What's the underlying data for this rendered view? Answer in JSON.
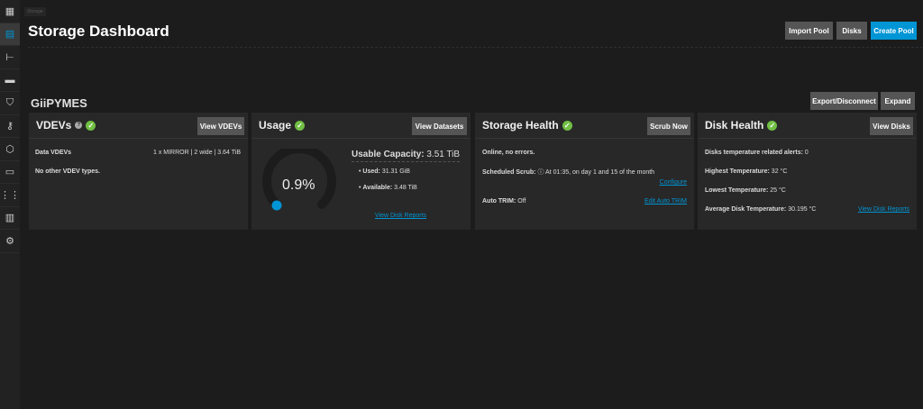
{
  "sidebar": {
    "items": [
      {
        "icon": "dashboard-icon"
      },
      {
        "icon": "storage-icon",
        "active": true
      },
      {
        "icon": "datasets-icon"
      },
      {
        "icon": "shares-icon"
      },
      {
        "icon": "shield-icon"
      },
      {
        "icon": "key-icon"
      },
      {
        "icon": "apps-cube-icon"
      },
      {
        "icon": "laptop-icon"
      },
      {
        "icon": "grid-icon"
      },
      {
        "icon": "reports-icon"
      },
      {
        "icon": "gear-icon"
      }
    ]
  },
  "breadcrumb": "Storage",
  "header": {
    "title": "Storage Dashboard",
    "import_pool": "Import Pool",
    "disks": "Disks",
    "create_pool": "Create Pool"
  },
  "pool": {
    "name": "GiiPYMES",
    "export": "Export/Disconnect",
    "expand": "Expand"
  },
  "colors": {
    "accent": "#0095d5",
    "ok": "#71bf44"
  },
  "vdevs": {
    "title": "VDEVs",
    "button": "View VDEVs",
    "data_label": "Data VDEVs",
    "data_value": "1 x MIRROR | 2 wide | 3.64 TiB",
    "other": "No other VDEV types."
  },
  "usage": {
    "title": "Usage",
    "button": "View Datasets",
    "percent": "0.9%",
    "percent_value": 0.9,
    "capacity_label": "Usable Capacity:",
    "capacity": "3.51 TiB",
    "used_label": "Used:",
    "used": "31.31 GiB",
    "available_label": "Available:",
    "available": "3.48 TiB",
    "link": "View Disk Reports"
  },
  "health": {
    "title": "Storage Health",
    "button": "Scrub Now",
    "status": "Online, no errors.",
    "scrub_label": "Scheduled Scrub:",
    "scrub": "At 01:35, on day 1 and 15 of the month",
    "configure": "Configure",
    "trim_label": "Auto TRIM:",
    "trim": "Off",
    "edit_trim": "Edit Auto TRIM"
  },
  "disk": {
    "title": "Disk Health",
    "button": "View Disks",
    "alerts_label": "Disks temperature related alerts:",
    "alerts": "0",
    "high_label": "Highest Temperature:",
    "high": "32 °C",
    "low_label": "Lowest Temperature:",
    "low": "25 °C",
    "avg_label": "Average Disk Temperature:",
    "avg": "30.195 °C",
    "link": "View Disk Reports"
  }
}
